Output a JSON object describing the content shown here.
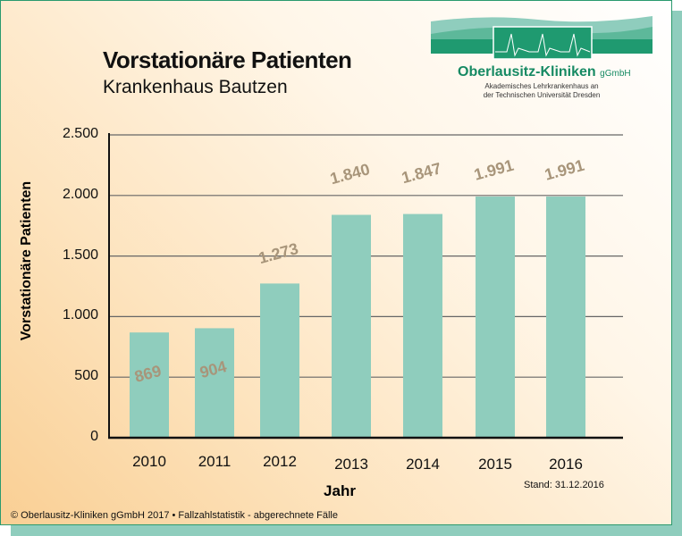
{
  "header": {
    "title": "Vorstationäre Patienten",
    "subtitle": "Krankenhaus Bautzen"
  },
  "logo": {
    "name": "Oberlausitz-Kliniken",
    "suffix": "gGmbH",
    "line1": "Akademisches Lehrkrankenhaus an",
    "line2": "der Technischen Universität Dresden"
  },
  "colors": {
    "bar": "#8fcdbd",
    "data_label": "#a8957a",
    "brand": "#168a63"
  },
  "chart_data": {
    "type": "bar",
    "categories": [
      "2010",
      "2011",
      "2012",
      "2013",
      "2014",
      "2015",
      "2016"
    ],
    "values": [
      869,
      904,
      1273,
      1840,
      1847,
      1991,
      1991
    ],
    "data_labels": [
      "869",
      "904",
      "1.273",
      "1.840",
      "1.847",
      "1.991",
      "1.991"
    ],
    "xlabel": "Jahr",
    "ylabel": "Vorstationäre Patienten",
    "ylim": [
      0,
      2500
    ],
    "yticks": [
      0,
      500,
      1000,
      1500,
      2000,
      2500
    ],
    "ytick_labels": [
      "0",
      "500",
      "1.000",
      "1.500",
      "2.000",
      "2.500"
    ],
    "grid": true
  },
  "stand": "Stand: 31.12.2016",
  "footer": "© Oberlausitz-Kliniken gGmbH 2017 • Fallzahlstatistik - abgerechnete Fälle"
}
